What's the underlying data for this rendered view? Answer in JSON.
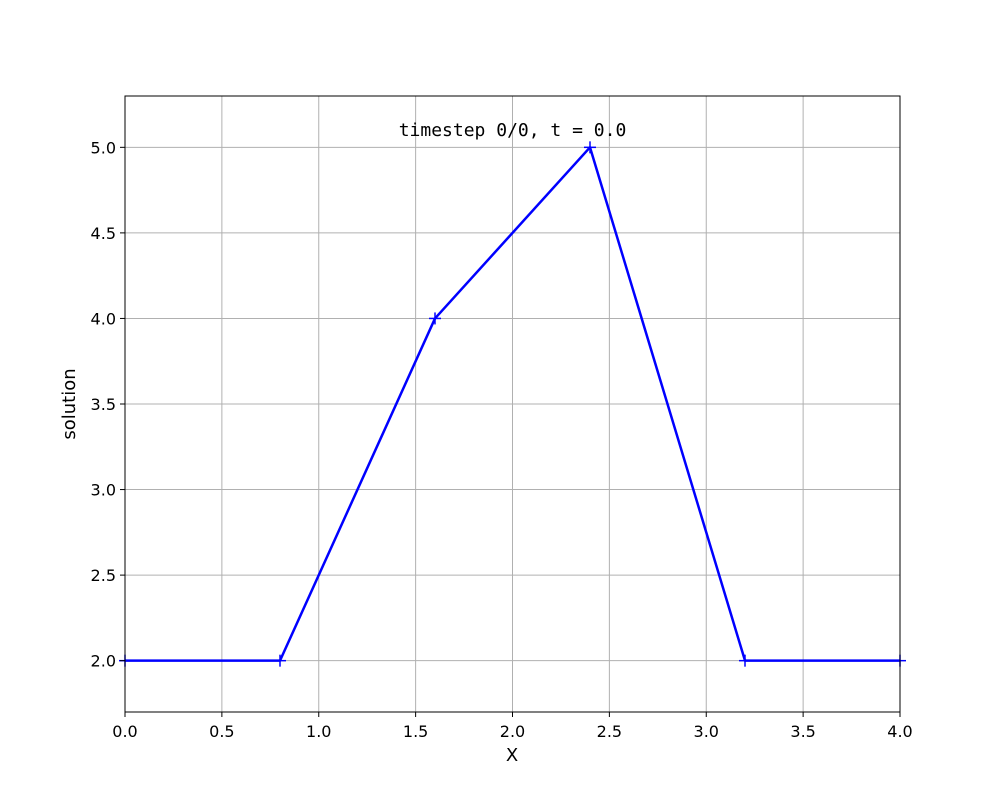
{
  "chart_data": {
    "type": "line",
    "title": "",
    "xlabel": "X",
    "ylabel": "solution",
    "xlim": [
      0.0,
      4.0
    ],
    "ylim": [
      1.7,
      5.3
    ],
    "grid": true,
    "x_ticks": [
      "0.0",
      "0.5",
      "1.0",
      "1.5",
      "2.0",
      "2.5",
      "3.0",
      "3.5",
      "4.0"
    ],
    "y_ticks": [
      "2.0",
      "2.5",
      "3.0",
      "3.5",
      "4.0",
      "4.5",
      "5.0"
    ],
    "series": [
      {
        "color": "#0000ff",
        "marker": "plus",
        "x": [
          0.0,
          0.8,
          1.6,
          2.4,
          3.2,
          4.0
        ],
        "y": [
          2.0,
          2.0,
          4.0,
          5.0,
          2.0,
          2.0
        ]
      }
    ],
    "annotation": {
      "text": "timestep 0/0, t = 0.0",
      "x": 2.0,
      "y": 5.1
    }
  }
}
